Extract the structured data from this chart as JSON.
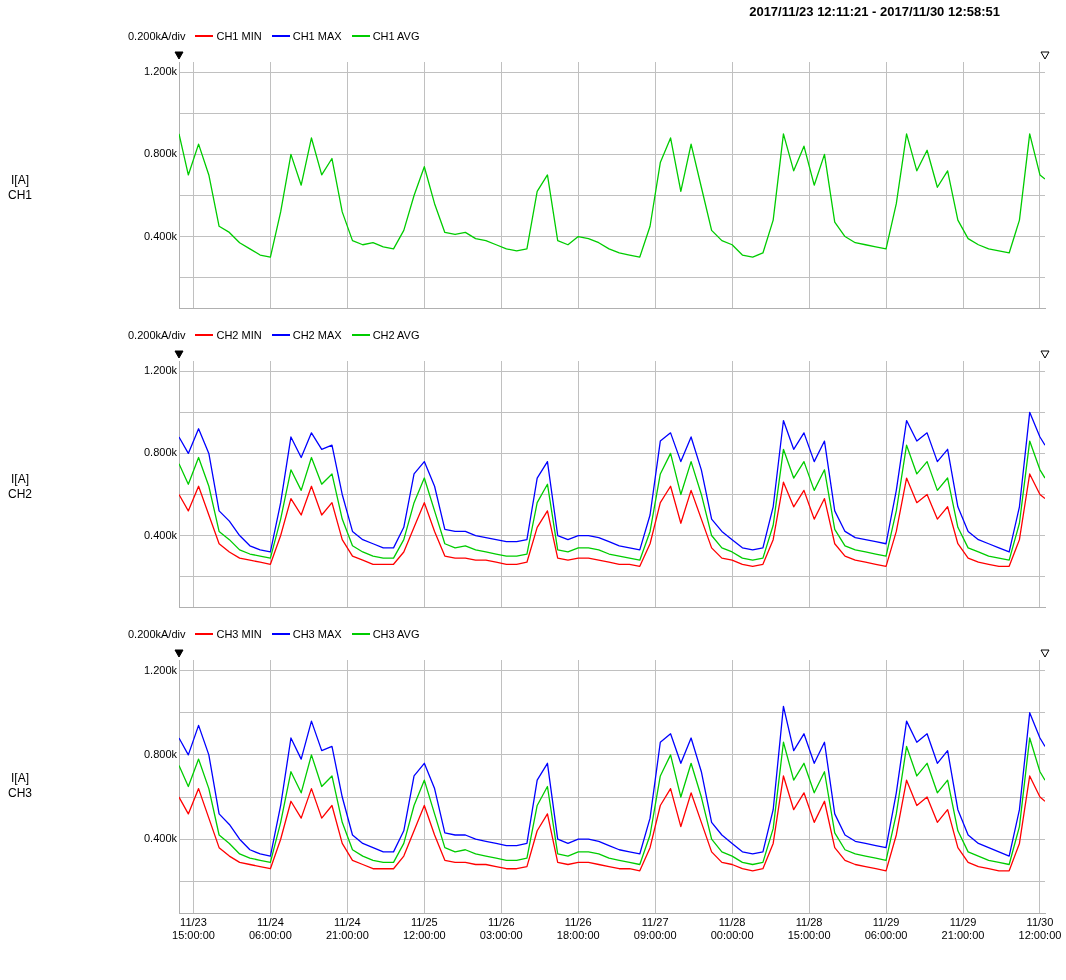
{
  "chart_data": [
    {
      "type": "line",
      "title": "2017/11/23 12:11:21 - 2017/11/30 12:58:51",
      "ylabel": "I[A]\nCH1",
      "annotations": [
        "0.200kA/div"
      ],
      "legend": "top left",
      "grid": true,
      "tick_labels": "y",
      "xlim": [
        "2017-11-23T12:11",
        "2017-11-30T12:59"
      ],
      "xticks": [
        {
          "value": "2017-11-23T15:00",
          "label": null
        },
        {
          "value": "2017-11-24T06:00",
          "label": null
        },
        {
          "value": "2017-11-24T21:00",
          "label": null
        },
        {
          "value": "2017-11-25T12:00",
          "label": null
        },
        {
          "value": "2017-11-26T03:00",
          "label": null
        },
        {
          "value": "2017-11-26T18:00",
          "label": null
        },
        {
          "value": "2017-11-27T09:00",
          "label": null
        },
        {
          "value": "2017-11-28T00:00",
          "label": null
        },
        {
          "value": "2017-11-28T15:00",
          "label": null
        },
        {
          "value": "2017-11-29T06:00",
          "label": null
        },
        {
          "value": "2017-11-29T21:00",
          "label": null
        },
        {
          "value": "2017-11-30T12:00",
          "label": null
        }
      ],
      "ylim": [
        50,
        1250
      ],
      "yticks": [
        {
          "value": 200,
          "label": null
        },
        {
          "value": 400,
          "label": "0.400k"
        },
        {
          "value": 600,
          "label": null
        },
        {
          "value": 800,
          "label": "0.800k"
        },
        {
          "value": 1000,
          "label": null
        },
        {
          "value": 1200,
          "label": "1.200k"
        }
      ],
      "x": [
        "2017-11-23T12:11",
        "2017-11-23T14:00",
        "2017-11-23T16:00",
        "2017-11-23T18:00",
        "2017-11-23T20:00",
        "2017-11-23T22:00",
        "2017-11-24T00:00",
        "2017-11-24T02:00",
        "2017-11-24T04:00",
        "2017-11-24T06:00",
        "2017-11-24T08:00",
        "2017-11-24T10:00",
        "2017-11-24T12:00",
        "2017-11-24T14:00",
        "2017-11-24T16:00",
        "2017-11-24T18:00",
        "2017-11-24T20:00",
        "2017-11-24T22:00",
        "2017-11-25T00:00",
        "2017-11-25T02:00",
        "2017-11-25T04:00",
        "2017-11-25T06:00",
        "2017-11-25T08:00",
        "2017-11-25T10:00",
        "2017-11-25T12:00",
        "2017-11-25T14:00",
        "2017-11-25T16:00",
        "2017-11-25T18:00",
        "2017-11-25T20:00",
        "2017-11-25T22:00",
        "2017-11-26T00:00",
        "2017-11-26T02:00",
        "2017-11-26T04:00",
        "2017-11-26T06:00",
        "2017-11-26T08:00",
        "2017-11-26T10:00",
        "2017-11-26T12:00",
        "2017-11-26T14:00",
        "2017-11-26T16:00",
        "2017-11-26T18:00",
        "2017-11-26T20:00",
        "2017-11-26T22:00",
        "2017-11-27T00:00",
        "2017-11-27T02:00",
        "2017-11-27T04:00",
        "2017-11-27T06:00",
        "2017-11-27T08:00",
        "2017-11-27T10:00",
        "2017-11-27T12:00",
        "2017-11-27T14:00",
        "2017-11-27T16:00",
        "2017-11-27T18:00",
        "2017-11-27T20:00",
        "2017-11-27T22:00",
        "2017-11-28T00:00",
        "2017-11-28T02:00",
        "2017-11-28T04:00",
        "2017-11-28T06:00",
        "2017-11-28T08:00",
        "2017-11-28T10:00",
        "2017-11-28T12:00",
        "2017-11-28T14:00",
        "2017-11-28T16:00",
        "2017-11-28T18:00",
        "2017-11-28T20:00",
        "2017-11-28T22:00",
        "2017-11-29T00:00",
        "2017-11-29T02:00",
        "2017-11-29T04:00",
        "2017-11-29T06:00",
        "2017-11-29T08:00",
        "2017-11-29T10:00",
        "2017-11-29T12:00",
        "2017-11-29T14:00",
        "2017-11-29T16:00",
        "2017-11-29T18:00",
        "2017-11-29T20:00",
        "2017-11-29T22:00",
        "2017-11-30T00:00",
        "2017-11-30T02:00",
        "2017-11-30T04:00",
        "2017-11-30T06:00",
        "2017-11-30T08:00",
        "2017-11-30T10:00",
        "2017-11-30T12:00",
        "2017-11-30T12:59"
      ],
      "series": [
        {
          "name": "CH1 MIN",
          "color": "#ff0000",
          "values": [
            null,
            null,
            null,
            null,
            null,
            null,
            null,
            null,
            null,
            null,
            null,
            null,
            null,
            null,
            null,
            null,
            null,
            null,
            null,
            null,
            null,
            null,
            null,
            null,
            null,
            null,
            null,
            null,
            null,
            null,
            null,
            null,
            null,
            null,
            null,
            null,
            null,
            null,
            null,
            null,
            null,
            null,
            null,
            null,
            null,
            null,
            null,
            null,
            null,
            null,
            null,
            null,
            null,
            null,
            null,
            null,
            null,
            null,
            null,
            null,
            null,
            null,
            null,
            null,
            null,
            null,
            null,
            null,
            null,
            null,
            null,
            null,
            null,
            null,
            null,
            null,
            null,
            null,
            null,
            null,
            null,
            null,
            null,
            null,
            null,
            null
          ]
        },
        {
          "name": "CH1 MAX",
          "color": "#0000ff",
          "values": [
            null,
            null,
            null,
            null,
            null,
            null,
            null,
            null,
            null,
            null,
            null,
            null,
            null,
            null,
            null,
            null,
            null,
            null,
            null,
            null,
            null,
            null,
            null,
            null,
            null,
            null,
            null,
            null,
            null,
            null,
            null,
            null,
            null,
            null,
            null,
            null,
            null,
            null,
            null,
            null,
            null,
            null,
            null,
            null,
            null,
            null,
            null,
            null,
            null,
            null,
            null,
            null,
            null,
            null,
            null,
            null,
            null,
            null,
            null,
            null,
            null,
            null,
            null,
            null,
            null,
            null,
            null,
            null,
            null,
            null,
            null,
            null,
            null,
            null,
            null,
            null,
            null,
            null,
            null,
            null,
            null,
            null,
            null,
            null,
            null,
            null
          ]
        },
        {
          "name": "CH1 AVG",
          "color": "#00cc00",
          "values": [
            900,
            700,
            850,
            700,
            450,
            420,
            370,
            340,
            310,
            300,
            520,
            800,
            650,
            880,
            700,
            780,
            520,
            380,
            360,
            370,
            350,
            340,
            430,
            600,
            740,
            560,
            420,
            410,
            420,
            390,
            380,
            360,
            340,
            330,
            340,
            620,
            700,
            380,
            360,
            400,
            390,
            370,
            340,
            320,
            310,
            300,
            450,
            760,
            880,
            620,
            850,
            640,
            430,
            380,
            360,
            310,
            300,
            320,
            480,
            900,
            720,
            840,
            650,
            800,
            470,
            400,
            370,
            360,
            350,
            340,
            560,
            900,
            720,
            820,
            640,
            720,
            480,
            390,
            360,
            340,
            330,
            320,
            480,
            900,
            700,
            680
          ]
        }
      ]
    },
    {
      "type": "line",
      "ylabel": "I[A]\nCH2",
      "annotations": [
        "0.200kA/div"
      ],
      "legend": "top left",
      "grid": true,
      "tick_labels": "y",
      "xlim": [
        "2017-11-23T12:11",
        "2017-11-30T12:59"
      ],
      "xticks": [
        {
          "value": "2017-11-23T15:00",
          "label": null
        },
        {
          "value": "2017-11-24T06:00",
          "label": null
        },
        {
          "value": "2017-11-24T21:00",
          "label": null
        },
        {
          "value": "2017-11-25T12:00",
          "label": null
        },
        {
          "value": "2017-11-26T03:00",
          "label": null
        },
        {
          "value": "2017-11-26T18:00",
          "label": null
        },
        {
          "value": "2017-11-27T09:00",
          "label": null
        },
        {
          "value": "2017-11-28T00:00",
          "label": null
        },
        {
          "value": "2017-11-28T15:00",
          "label": null
        },
        {
          "value": "2017-11-29T06:00",
          "label": null
        },
        {
          "value": "2017-11-29T21:00",
          "label": null
        },
        {
          "value": "2017-11-30T12:00",
          "label": null
        }
      ],
      "ylim": [
        50,
        1250
      ],
      "yticks": [
        {
          "value": 200,
          "label": null
        },
        {
          "value": 400,
          "label": "0.400k"
        },
        {
          "value": 600,
          "label": null
        },
        {
          "value": 800,
          "label": "0.800k"
        },
        {
          "value": 1000,
          "label": null
        },
        {
          "value": 1200,
          "label": "1.200k"
        }
      ],
      "x": [
        "2017-11-23T12:11",
        "2017-11-23T14:00",
        "2017-11-23T16:00",
        "2017-11-23T18:00",
        "2017-11-23T20:00",
        "2017-11-23T22:00",
        "2017-11-24T00:00",
        "2017-11-24T02:00",
        "2017-11-24T04:00",
        "2017-11-24T06:00",
        "2017-11-24T08:00",
        "2017-11-24T10:00",
        "2017-11-24T12:00",
        "2017-11-24T14:00",
        "2017-11-24T16:00",
        "2017-11-24T18:00",
        "2017-11-24T20:00",
        "2017-11-24T22:00",
        "2017-11-25T00:00",
        "2017-11-25T02:00",
        "2017-11-25T04:00",
        "2017-11-25T06:00",
        "2017-11-25T08:00",
        "2017-11-25T10:00",
        "2017-11-25T12:00",
        "2017-11-25T14:00",
        "2017-11-25T16:00",
        "2017-11-25T18:00",
        "2017-11-25T20:00",
        "2017-11-25T22:00",
        "2017-11-26T00:00",
        "2017-11-26T02:00",
        "2017-11-26T04:00",
        "2017-11-26T06:00",
        "2017-11-26T08:00",
        "2017-11-26T10:00",
        "2017-11-26T12:00",
        "2017-11-26T14:00",
        "2017-11-26T16:00",
        "2017-11-26T18:00",
        "2017-11-26T20:00",
        "2017-11-26T22:00",
        "2017-11-27T00:00",
        "2017-11-27T02:00",
        "2017-11-27T04:00",
        "2017-11-27T06:00",
        "2017-11-27T08:00",
        "2017-11-27T10:00",
        "2017-11-27T12:00",
        "2017-11-27T14:00",
        "2017-11-27T16:00",
        "2017-11-27T18:00",
        "2017-11-27T20:00",
        "2017-11-27T22:00",
        "2017-11-28T00:00",
        "2017-11-28T02:00",
        "2017-11-28T04:00",
        "2017-11-28T06:00",
        "2017-11-28T08:00",
        "2017-11-28T10:00",
        "2017-11-28T12:00",
        "2017-11-28T14:00",
        "2017-11-28T16:00",
        "2017-11-28T18:00",
        "2017-11-28T20:00",
        "2017-11-28T22:00",
        "2017-11-29T00:00",
        "2017-11-29T02:00",
        "2017-11-29T04:00",
        "2017-11-29T06:00",
        "2017-11-29T08:00",
        "2017-11-29T10:00",
        "2017-11-29T12:00",
        "2017-11-29T14:00",
        "2017-11-29T16:00",
        "2017-11-29T18:00",
        "2017-11-29T20:00",
        "2017-11-29T22:00",
        "2017-11-30T00:00",
        "2017-11-30T02:00",
        "2017-11-30T04:00",
        "2017-11-30T06:00",
        "2017-11-30T08:00",
        "2017-11-30T10:00",
        "2017-11-30T12:00",
        "2017-11-30T12:59"
      ],
      "series": [
        {
          "name": "CH2 MIN",
          "color": "#ff0000",
          "values": [
            600,
            520,
            640,
            500,
            360,
            320,
            290,
            280,
            270,
            260,
            400,
            580,
            500,
            640,
            500,
            560,
            380,
            300,
            280,
            260,
            260,
            260,
            320,
            440,
            560,
            420,
            300,
            290,
            290,
            280,
            280,
            270,
            260,
            260,
            270,
            440,
            520,
            290,
            280,
            290,
            290,
            280,
            270,
            260,
            260,
            250,
            360,
            560,
            640,
            460,
            620,
            480,
            340,
            290,
            280,
            260,
            250,
            260,
            380,
            660,
            540,
            620,
            480,
            580,
            360,
            300,
            280,
            270,
            260,
            250,
            420,
            680,
            560,
            600,
            480,
            540,
            360,
            290,
            270,
            260,
            250,
            250,
            380,
            700,
            600,
            580
          ]
        },
        {
          "name": "CH2 MAX",
          "color": "#0000ff",
          "values": [
            880,
            800,
            920,
            800,
            520,
            470,
            400,
            350,
            330,
            320,
            560,
            880,
            780,
            900,
            820,
            840,
            600,
            420,
            380,
            360,
            340,
            340,
            440,
            700,
            760,
            640,
            430,
            420,
            420,
            400,
            390,
            380,
            370,
            370,
            380,
            680,
            760,
            400,
            380,
            400,
            400,
            390,
            370,
            350,
            340,
            330,
            500,
            860,
            900,
            760,
            880,
            720,
            480,
            420,
            380,
            340,
            330,
            340,
            540,
            960,
            820,
            900,
            760,
            860,
            520,
            420,
            390,
            380,
            370,
            360,
            620,
            960,
            860,
            900,
            760,
            820,
            540,
            420,
            380,
            360,
            340,
            320,
            540,
            1000,
            880,
            840
          ]
        },
        {
          "name": "CH2 AVG",
          "color": "#00cc00",
          "values": [
            750,
            650,
            780,
            640,
            420,
            380,
            330,
            310,
            300,
            290,
            480,
            720,
            620,
            780,
            650,
            700,
            480,
            350,
            320,
            300,
            290,
            290,
            380,
            560,
            680,
            520,
            360,
            340,
            350,
            330,
            320,
            310,
            300,
            300,
            310,
            560,
            650,
            330,
            320,
            340,
            340,
            330,
            310,
            300,
            290,
            280,
            420,
            700,
            800,
            600,
            760,
            600,
            400,
            340,
            320,
            290,
            280,
            290,
            450,
            820,
            680,
            760,
            620,
            720,
            430,
            350,
            330,
            320,
            310,
            300,
            520,
            840,
            700,
            760,
            620,
            680,
            440,
            340,
            320,
            300,
            290,
            280,
            460,
            860,
            720,
            680
          ]
        }
      ]
    },
    {
      "type": "line",
      "ylabel": "I[A]\nCH3",
      "annotations": [
        "0.200kA/div"
      ],
      "legend": "top left",
      "grid": true,
      "xlim": [
        "2017-11-23T12:11",
        "2017-11-30T12:59"
      ],
      "xticks": [
        {
          "value": "2017-11-23T15:00",
          "label": "11/23\n15:00:00"
        },
        {
          "value": "2017-11-24T06:00",
          "label": "11/24\n06:00:00"
        },
        {
          "value": "2017-11-24T21:00",
          "label": "11/24\n21:00:00"
        },
        {
          "value": "2017-11-25T12:00",
          "label": "11/25\n12:00:00"
        },
        {
          "value": "2017-11-26T03:00",
          "label": "11/26\n03:00:00"
        },
        {
          "value": "2017-11-26T18:00",
          "label": "11/26\n18:00:00"
        },
        {
          "value": "2017-11-27T09:00",
          "label": "11/27\n09:00:00"
        },
        {
          "value": "2017-11-28T00:00",
          "label": "11/28\n00:00:00"
        },
        {
          "value": "2017-11-28T15:00",
          "label": "11/28\n15:00:00"
        },
        {
          "value": "2017-11-29T06:00",
          "label": "11/29\n06:00:00"
        },
        {
          "value": "2017-11-29T21:00",
          "label": "11/29\n21:00:00"
        },
        {
          "value": "2017-11-30T12:00",
          "label": "11/30\n12:00:00"
        }
      ],
      "ylim": [
        50,
        1250
      ],
      "yticks": [
        {
          "value": 200,
          "label": null
        },
        {
          "value": 400,
          "label": "0.400k"
        },
        {
          "value": 600,
          "label": null
        },
        {
          "value": 800,
          "label": "0.800k"
        },
        {
          "value": 1000,
          "label": null
        },
        {
          "value": 1200,
          "label": "1.200k"
        }
      ],
      "x": [
        "2017-11-23T12:11",
        "2017-11-23T14:00",
        "2017-11-23T16:00",
        "2017-11-23T18:00",
        "2017-11-23T20:00",
        "2017-11-23T22:00",
        "2017-11-24T00:00",
        "2017-11-24T02:00",
        "2017-11-24T04:00",
        "2017-11-24T06:00",
        "2017-11-24T08:00",
        "2017-11-24T10:00",
        "2017-11-24T12:00",
        "2017-11-24T14:00",
        "2017-11-24T16:00",
        "2017-11-24T18:00",
        "2017-11-24T20:00",
        "2017-11-24T22:00",
        "2017-11-25T00:00",
        "2017-11-25T02:00",
        "2017-11-25T04:00",
        "2017-11-25T06:00",
        "2017-11-25T08:00",
        "2017-11-25T10:00",
        "2017-11-25T12:00",
        "2017-11-25T14:00",
        "2017-11-25T16:00",
        "2017-11-25T18:00",
        "2017-11-25T20:00",
        "2017-11-25T22:00",
        "2017-11-26T00:00",
        "2017-11-26T02:00",
        "2017-11-26T04:00",
        "2017-11-26T06:00",
        "2017-11-26T08:00",
        "2017-11-26T10:00",
        "2017-11-26T12:00",
        "2017-11-26T14:00",
        "2017-11-26T16:00",
        "2017-11-26T18:00",
        "2017-11-26T20:00",
        "2017-11-26T22:00",
        "2017-11-27T00:00",
        "2017-11-27T02:00",
        "2017-11-27T04:00",
        "2017-11-27T06:00",
        "2017-11-27T08:00",
        "2017-11-27T10:00",
        "2017-11-27T12:00",
        "2017-11-27T14:00",
        "2017-11-27T16:00",
        "2017-11-27T18:00",
        "2017-11-27T20:00",
        "2017-11-27T22:00",
        "2017-11-28T00:00",
        "2017-11-28T02:00",
        "2017-11-28T04:00",
        "2017-11-28T06:00",
        "2017-11-28T08:00",
        "2017-11-28T10:00",
        "2017-11-28T12:00",
        "2017-11-28T14:00",
        "2017-11-28T16:00",
        "2017-11-28T18:00",
        "2017-11-28T20:00",
        "2017-11-28T22:00",
        "2017-11-29T00:00",
        "2017-11-29T02:00",
        "2017-11-29T04:00",
        "2017-11-29T06:00",
        "2017-11-29T08:00",
        "2017-11-29T10:00",
        "2017-11-29T12:00",
        "2017-11-29T14:00",
        "2017-11-29T16:00",
        "2017-11-29T18:00",
        "2017-11-29T20:00",
        "2017-11-29T22:00",
        "2017-11-30T00:00",
        "2017-11-30T02:00",
        "2017-11-30T04:00",
        "2017-11-30T06:00",
        "2017-11-30T08:00",
        "2017-11-30T10:00",
        "2017-11-30T12:00",
        "2017-11-30T12:59"
      ],
      "series": [
        {
          "name": "CH3 MIN",
          "color": "#ff0000",
          "values": [
            600,
            520,
            640,
            500,
            360,
            320,
            290,
            280,
            270,
            260,
            400,
            580,
            500,
            640,
            500,
            560,
            380,
            300,
            280,
            260,
            260,
            260,
            320,
            440,
            560,
            420,
            300,
            290,
            290,
            280,
            280,
            270,
            260,
            260,
            270,
            440,
            520,
            290,
            280,
            290,
            290,
            280,
            270,
            260,
            260,
            250,
            360,
            560,
            640,
            460,
            620,
            480,
            340,
            290,
            280,
            260,
            250,
            260,
            380,
            700,
            540,
            620,
            480,
            580,
            360,
            300,
            280,
            270,
            260,
            250,
            420,
            680,
            560,
            600,
            480,
            540,
            360,
            290,
            270,
            260,
            250,
            250,
            380,
            700,
            600,
            580
          ]
        },
        {
          "name": "CH3 MAX",
          "color": "#0000ff",
          "values": [
            880,
            800,
            940,
            800,
            520,
            470,
            400,
            350,
            330,
            320,
            560,
            880,
            780,
            960,
            820,
            840,
            600,
            420,
            380,
            360,
            340,
            340,
            440,
            700,
            760,
            640,
            430,
            420,
            420,
            400,
            390,
            380,
            370,
            370,
            380,
            680,
            760,
            400,
            380,
            400,
            400,
            390,
            370,
            350,
            340,
            330,
            500,
            860,
            900,
            760,
            880,
            720,
            480,
            420,
            380,
            340,
            330,
            340,
            540,
            1030,
            820,
            900,
            760,
            860,
            520,
            420,
            390,
            380,
            370,
            360,
            620,
            960,
            860,
            900,
            760,
            820,
            540,
            420,
            380,
            360,
            340,
            320,
            540,
            1000,
            880,
            840
          ]
        },
        {
          "name": "CH3 AVG",
          "color": "#00cc00",
          "values": [
            750,
            650,
            780,
            640,
            420,
            380,
            330,
            310,
            300,
            290,
            480,
            720,
            620,
            800,
            650,
            700,
            480,
            350,
            320,
            300,
            290,
            290,
            380,
            560,
            680,
            520,
            360,
            340,
            350,
            330,
            320,
            310,
            300,
            300,
            310,
            560,
            650,
            330,
            320,
            340,
            340,
            330,
            310,
            300,
            290,
            280,
            420,
            700,
            800,
            600,
            760,
            600,
            400,
            340,
            320,
            290,
            280,
            290,
            450,
            860,
            680,
            760,
            620,
            720,
            430,
            350,
            330,
            320,
            310,
            300,
            520,
            840,
            700,
            760,
            620,
            680,
            440,
            340,
            320,
            300,
            290,
            280,
            460,
            880,
            720,
            680
          ]
        }
      ]
    }
  ]
}
